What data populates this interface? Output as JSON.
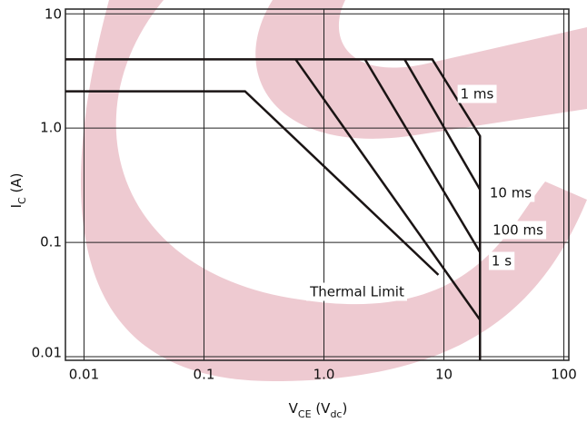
{
  "chart_data": {
    "type": "line",
    "xlabel": [
      "V",
      "CE",
      " (V",
      "dc",
      ")"
    ],
    "ylabel": [
      "I",
      "C",
      " (A)"
    ],
    "xscale": "log",
    "yscale": "log",
    "grid": true,
    "xlim": [
      0.007,
      110
    ],
    "ylim": [
      0.0093,
      11
    ],
    "xticks": [
      0.01,
      0.1,
      {
        "value": 1,
        "label": "1.0"
      },
      10,
      100
    ],
    "yticks": [
      0.01,
      0.1,
      {
        "value": 1,
        "label": "1.0"
      },
      10
    ],
    "series": [
      {
        "name": "1 ms",
        "color": "#1a1414",
        "x": [
          0.007,
          8,
          20,
          20
        ],
        "values": [
          4,
          4,
          0.85,
          0.0093
        ]
      },
      {
        "name": "10 ms",
        "color": "#1a1414",
        "x": [
          4.7,
          20
        ],
        "values": [
          4,
          0.29
        ]
      },
      {
        "name": "100 ms",
        "color": "#1a1414",
        "x": [
          2.2,
          20
        ],
        "values": [
          4,
          0.082
        ]
      },
      {
        "name": "1 s",
        "color": "#1a1414",
        "x": [
          0.58,
          20
        ],
        "values": [
          4,
          0.021
        ]
      },
      {
        "name": "Thermal Limit",
        "color": "#1a1414",
        "x": [
          0.007,
          0.22,
          9
        ],
        "values": [
          2.1,
          2.1,
          0.052
        ]
      }
    ]
  }
}
